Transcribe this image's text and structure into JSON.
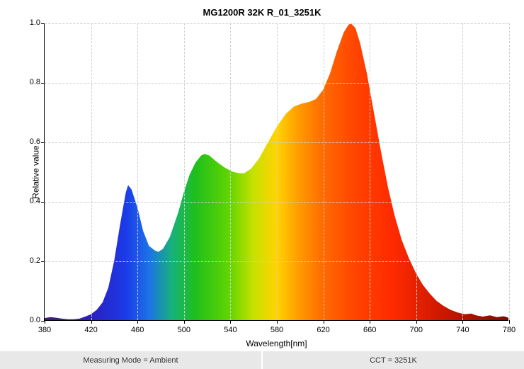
{
  "chart": {
    "type": "area-spectrum",
    "title": "MG1200R 32K R_01_3251K",
    "title_fontsize": 13,
    "xlabel": "Wavelength[nm]",
    "ylabel": "Relative value",
    "label_fontsize": 12,
    "tick_fontsize": 11,
    "background_color": "#ffffff",
    "grid_color": "#cfcfcf",
    "grid_dash": "4 3",
    "axis_color": "#000000",
    "xlim": [
      380,
      780
    ],
    "ylim": [
      0,
      1.0
    ],
    "xtick_step": 40,
    "ytick_step": 0.2,
    "xticks": [
      380,
      420,
      460,
      500,
      540,
      580,
      620,
      660,
      700,
      740,
      780
    ],
    "yticks": [
      0.0,
      0.2,
      0.4,
      0.6,
      0.8,
      1.0
    ],
    "spectrum_gradient_stops": [
      {
        "nm": 380,
        "color": "#3a1f6b"
      },
      {
        "nm": 420,
        "color": "#2b1fbf"
      },
      {
        "nm": 450,
        "color": "#1b3be8"
      },
      {
        "nm": 470,
        "color": "#1c72e8"
      },
      {
        "nm": 490,
        "color": "#17b27a"
      },
      {
        "nm": 510,
        "color": "#1fbf1c"
      },
      {
        "nm": 540,
        "color": "#63d600"
      },
      {
        "nm": 560,
        "color": "#c7e000"
      },
      {
        "nm": 580,
        "color": "#ffd400"
      },
      {
        "nm": 600,
        "color": "#ff9a00"
      },
      {
        "nm": 620,
        "color": "#ff6a00"
      },
      {
        "nm": 650,
        "color": "#ff4200"
      },
      {
        "nm": 680,
        "color": "#ff2a00"
      },
      {
        "nm": 720,
        "color": "#d01800"
      },
      {
        "nm": 780,
        "color": "#7a0c00"
      }
    ],
    "data": [
      {
        "x": 380,
        "y": 0.007
      },
      {
        "x": 385,
        "y": 0.01
      },
      {
        "x": 390,
        "y": 0.008
      },
      {
        "x": 395,
        "y": 0.005
      },
      {
        "x": 400,
        "y": 0.003
      },
      {
        "x": 405,
        "y": 0.003
      },
      {
        "x": 410,
        "y": 0.005
      },
      {
        "x": 415,
        "y": 0.012
      },
      {
        "x": 420,
        "y": 0.02
      },
      {
        "x": 425,
        "y": 0.035
      },
      {
        "x": 430,
        "y": 0.06
      },
      {
        "x": 435,
        "y": 0.11
      },
      {
        "x": 440,
        "y": 0.2
      },
      {
        "x": 445,
        "y": 0.32
      },
      {
        "x": 450,
        "y": 0.43
      },
      {
        "x": 452,
        "y": 0.455
      },
      {
        "x": 455,
        "y": 0.44
      },
      {
        "x": 460,
        "y": 0.38
      },
      {
        "x": 465,
        "y": 0.3
      },
      {
        "x": 470,
        "y": 0.25
      },
      {
        "x": 475,
        "y": 0.235
      },
      {
        "x": 478,
        "y": 0.23
      },
      {
        "x": 482,
        "y": 0.24
      },
      {
        "x": 488,
        "y": 0.28
      },
      {
        "x": 495,
        "y": 0.36
      },
      {
        "x": 500,
        "y": 0.43
      },
      {
        "x": 505,
        "y": 0.49
      },
      {
        "x": 510,
        "y": 0.53
      },
      {
        "x": 515,
        "y": 0.555
      },
      {
        "x": 518,
        "y": 0.56
      },
      {
        "x": 522,
        "y": 0.555
      },
      {
        "x": 528,
        "y": 0.535
      },
      {
        "x": 535,
        "y": 0.515
      },
      {
        "x": 542,
        "y": 0.5
      },
      {
        "x": 548,
        "y": 0.495
      },
      {
        "x": 552,
        "y": 0.495
      },
      {
        "x": 558,
        "y": 0.51
      },
      {
        "x": 565,
        "y": 0.545
      },
      {
        "x": 572,
        "y": 0.595
      },
      {
        "x": 580,
        "y": 0.65
      },
      {
        "x": 588,
        "y": 0.695
      },
      {
        "x": 595,
        "y": 0.72
      },
      {
        "x": 602,
        "y": 0.73
      },
      {
        "x": 608,
        "y": 0.735
      },
      {
        "x": 614,
        "y": 0.745
      },
      {
        "x": 620,
        "y": 0.775
      },
      {
        "x": 626,
        "y": 0.83
      },
      {
        "x": 632,
        "y": 0.905
      },
      {
        "x": 638,
        "y": 0.97
      },
      {
        "x": 642,
        "y": 0.995
      },
      {
        "x": 644,
        "y": 1.0
      },
      {
        "x": 648,
        "y": 0.985
      },
      {
        "x": 652,
        "y": 0.935
      },
      {
        "x": 658,
        "y": 0.83
      },
      {
        "x": 664,
        "y": 0.7
      },
      {
        "x": 670,
        "y": 0.57
      },
      {
        "x": 676,
        "y": 0.45
      },
      {
        "x": 682,
        "y": 0.35
      },
      {
        "x": 688,
        "y": 0.27
      },
      {
        "x": 694,
        "y": 0.21
      },
      {
        "x": 700,
        "y": 0.16
      },
      {
        "x": 706,
        "y": 0.12
      },
      {
        "x": 712,
        "y": 0.09
      },
      {
        "x": 718,
        "y": 0.065
      },
      {
        "x": 724,
        "y": 0.048
      },
      {
        "x": 730,
        "y": 0.035
      },
      {
        "x": 736,
        "y": 0.026
      },
      {
        "x": 742,
        "y": 0.02
      },
      {
        "x": 748,
        "y": 0.022
      },
      {
        "x": 752,
        "y": 0.016
      },
      {
        "x": 758,
        "y": 0.012
      },
      {
        "x": 764,
        "y": 0.016
      },
      {
        "x": 770,
        "y": 0.01
      },
      {
        "x": 776,
        "y": 0.013
      },
      {
        "x": 780,
        "y": 0.008
      }
    ]
  },
  "footer": {
    "measuring_mode": "Measuring Mode = Ambient",
    "cct": "CCT = 3251K",
    "background_color": "#e8e8e8",
    "text_color": "#333333"
  }
}
